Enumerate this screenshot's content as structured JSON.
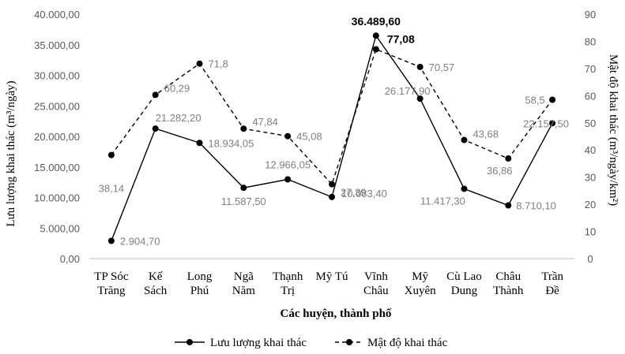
{
  "chart_data": {
    "type": "line",
    "categories": [
      [
        "TP Sóc",
        "Trăng"
      ],
      [
        "Kế",
        "Sách"
      ],
      [
        "Long",
        "Phú"
      ],
      [
        "Ngã",
        "Năm"
      ],
      [
        "Thạnh",
        "Trị"
      ],
      [
        "Mỹ Tú"
      ],
      [
        "Vĩnh",
        "Châu"
      ],
      [
        "Mỹ",
        "Xuyên"
      ],
      [
        "Cù Lao",
        "Dung"
      ],
      [
        "Châu",
        "Thành"
      ],
      [
        "Trần",
        "Đề"
      ]
    ],
    "xlabel": "Các huyện, thành phố",
    "ylabel_left": "Lưu lượng khai thác (m³/ngày)",
    "ylabel_right": "Mật độ khai thác (m³/ngày/km²)",
    "ylim_left": [
      0,
      40000
    ],
    "ylim_right": [
      0,
      90
    ],
    "yticks_left": [
      "0,00",
      "5.000,00",
      "10.000,00",
      "15.000,00",
      "20.000,00",
      "25.000,00",
      "30.000,00",
      "35.000,00",
      "40.000,00"
    ],
    "yticks_right": [
      "0",
      "10",
      "20",
      "30",
      "40",
      "50",
      "60",
      "70",
      "80",
      "90"
    ],
    "series": [
      {
        "name": "Lưu lượng khai thác",
        "axis": "left",
        "style": "solid",
        "color": "#000000",
        "values": [
          2904.7,
          21282.2,
          18934.05,
          11587.5,
          12966.05,
          10083.4,
          36489.6,
          26177.9,
          11417.3,
          8710.1,
          22157.5
        ],
        "labels": [
          "2.904,70",
          "21.282,20",
          "18.934,05",
          "11.587,50",
          "12.966,05",
          "10.083,40",
          "36.489,60",
          "26.177,90",
          "11.417,30",
          "8.710,10",
          "22.157,50"
        ]
      },
      {
        "name": "Mật độ khai thác",
        "axis": "right",
        "style": "dashed",
        "color": "#000000",
        "values": [
          38.14,
          60.29,
          71.8,
          47.84,
          45.08,
          27.39,
          77.08,
          70.57,
          43.68,
          36.86,
          58.5
        ],
        "labels": [
          "38,14",
          "60,29",
          "71,8",
          "47,84",
          "45,08",
          "27,39",
          "77,08",
          "70,57",
          "43,68",
          "36,86",
          "58,5"
        ]
      }
    ],
    "grid": false,
    "legend_position": "bottom-center"
  }
}
